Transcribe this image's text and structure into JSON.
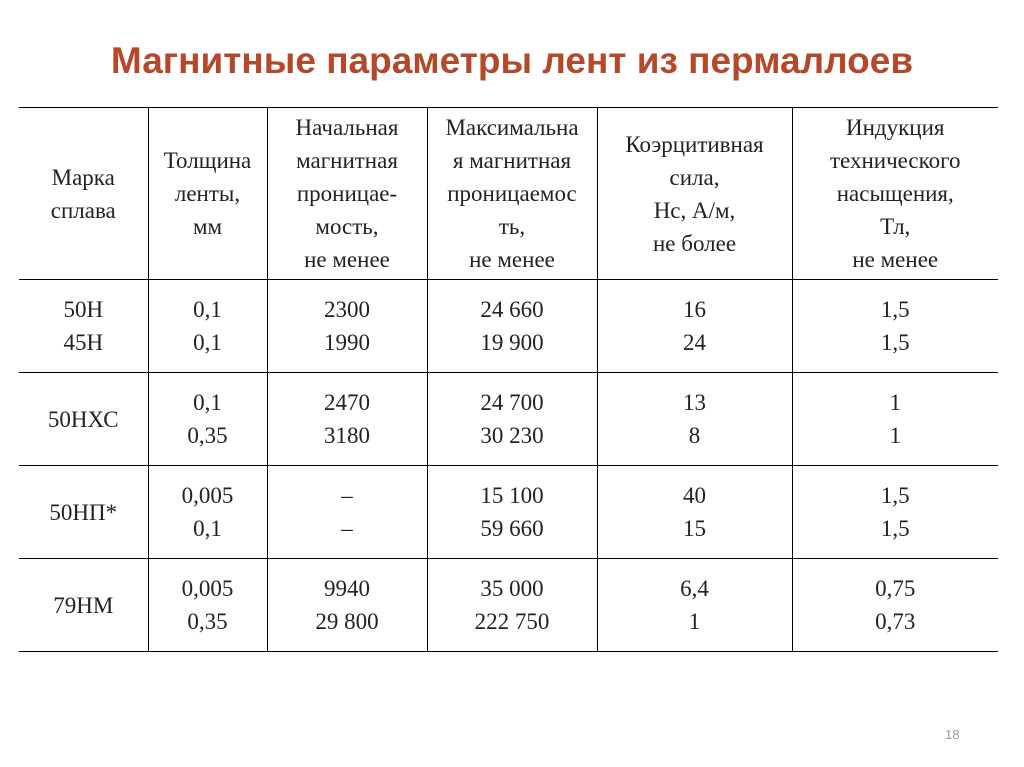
{
  "title": "Магнитные параметры лент из пермаллоев",
  "headers": [
    {
      "lines": [
        "Марка",
        "сплава"
      ]
    },
    {
      "lines": [
        "Толщина",
        "ленты,",
        "мм"
      ]
    },
    {
      "lines": [
        "Начальная",
        "магнитная",
        "проницае-",
        "мость,",
        "не менее"
      ]
    },
    {
      "lines": [
        "Максимальна",
        "я магнитная",
        "проницаемос",
        "ть,",
        "не менее"
      ]
    },
    {
      "lines": [
        "Коэрцитивная",
        "сила,",
        "Hc, А/м,",
        "не более"
      ]
    },
    {
      "lines": [
        "Индукция",
        "технического",
        "насыщения,",
        "Тл,",
        "не менее"
      ]
    }
  ],
  "rows": [
    {
      "grade": [
        "50Н",
        "45Н"
      ],
      "thickness": [
        "0,1",
        "0,1"
      ],
      "initial_perm": [
        "2300",
        "1990"
      ],
      "max_perm": [
        "24 660",
        "19 900"
      ],
      "coercive": [
        "16",
        "24"
      ],
      "saturation": [
        "1,5",
        "1,5"
      ]
    },
    {
      "grade": [
        "50НХС"
      ],
      "thickness": [
        "0,1",
        "0,35"
      ],
      "initial_perm": [
        "2470",
        "3180"
      ],
      "max_perm": [
        "24 700",
        "30 230"
      ],
      "coercive": [
        "13",
        "8"
      ],
      "saturation": [
        "1",
        "1"
      ]
    },
    {
      "grade": [
        "50НП*"
      ],
      "thickness": [
        "0,005",
        "0,1"
      ],
      "initial_perm": [
        "–",
        "–"
      ],
      "max_perm": [
        "15 100",
        "59 660"
      ],
      "coercive": [
        "40",
        "15"
      ],
      "saturation": [
        "1,5",
        "1,5"
      ]
    },
    {
      "grade": [
        "79НМ"
      ],
      "thickness": [
        "0,005",
        "0,35"
      ],
      "initial_perm": [
        "9940",
        "29 800"
      ],
      "max_perm": [
        "35 000",
        "222 750"
      ],
      "coercive": [
        "6,4",
        "1"
      ],
      "saturation": [
        "0,75",
        "0,73"
      ]
    }
  ],
  "page_number": "18",
  "colors": {
    "title": "#b5482b",
    "text": "#222222",
    "rule": "#000000",
    "page_number": "#9a9a9a"
  }
}
